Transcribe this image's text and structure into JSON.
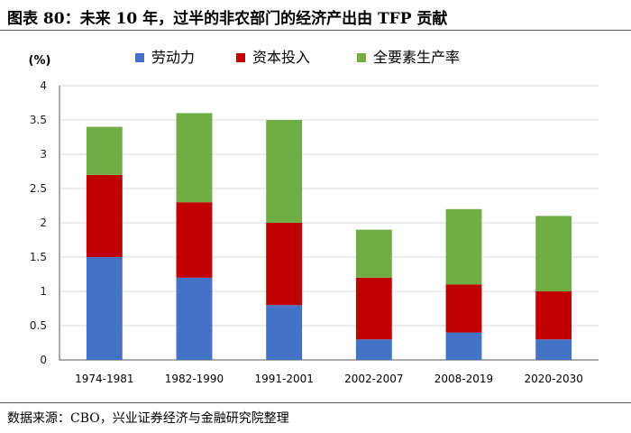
{
  "header": {
    "title": "图表 80：未来 10 年，过半的非农部门的经济产出由 TFP 贡献"
  },
  "footer": {
    "source": "数据来源：CBO，兴业证券经济与金融研究院整理"
  },
  "chart_data": {
    "type": "bar",
    "stacked": true,
    "unit_label": "(%)",
    "categories": [
      "1974-1981",
      "1982-1990",
      "1991-2001",
      "2002-2007",
      "2008-2019",
      "2020-2030"
    ],
    "series": [
      {
        "name": "劳动力",
        "color": "#4472C4",
        "values": [
          1.5,
          1.2,
          0.8,
          0.3,
          0.4,
          0.3
        ]
      },
      {
        "name": "资本投入",
        "color": "#C00000",
        "values": [
          1.2,
          1.1,
          1.2,
          0.9,
          0.7,
          0.7
        ]
      },
      {
        "name": "全要素生产率",
        "color": "#70AD47",
        "values": [
          0.7,
          1.3,
          1.5,
          0.7,
          1.1,
          1.1
        ]
      }
    ],
    "ylim": [
      0,
      4
    ],
    "yticks": [
      "0",
      "0.5",
      "1",
      "1.5",
      "2",
      "2.5",
      "3",
      "3.5",
      "4"
    ],
    "grid": true,
    "legend_position": "top"
  }
}
